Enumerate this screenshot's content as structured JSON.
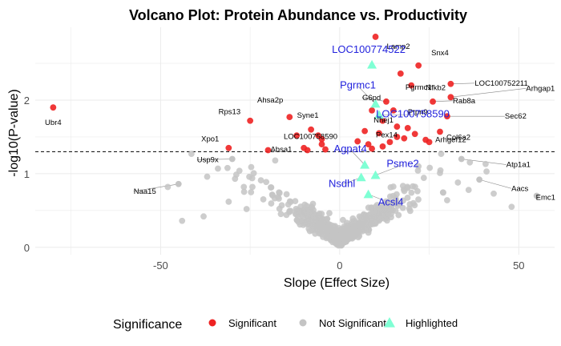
{
  "chart_data": {
    "type": "scatter",
    "title": "Volcano Plot: Protein Abundance vs. Productivity",
    "xlabel": "Slope (Effect Size)",
    "ylabel": "-log10(P-value)",
    "xlim": [
      -85,
      60
    ],
    "ylim": [
      -0.1,
      2.99
    ],
    "xticks": [
      -50,
      0,
      50
    ],
    "yticks": [
      0,
      1,
      2
    ],
    "threshold_y": 1.3,
    "grid": true,
    "legend": {
      "title": "Significance",
      "position": "bottom",
      "entries": [
        {
          "label": "Significant",
          "color": "#ee2222",
          "shape": "circle"
        },
        {
          "label": "Not Significant",
          "color": "#c4c4c4",
          "shape": "circle"
        },
        {
          "label": "Highlighted",
          "color": "#7fffd4",
          "shape": "triangle"
        }
      ]
    },
    "colors": {
      "significant": "#ee2222",
      "not_significant": "#c4c4c4",
      "highlighted": "#7fffd4",
      "highlight_label": "#2222dd"
    },
    "significant": [
      {
        "name": "Ubr4",
        "x": -80,
        "y": 1.9
      },
      {
        "name": "Rps13",
        "x": -25,
        "y": 1.72
      },
      {
        "name": "Ahsa2p",
        "x": -14,
        "y": 1.77
      },
      {
        "name": "Syne1",
        "x": -8,
        "y": 1.6
      },
      {
        "name": "Xpo1",
        "x": -31,
        "y": 1.35
      },
      {
        "name": "Absa1",
        "x": -20,
        "y": 1.32
      },
      {
        "name": "LOC100758590",
        "x": -5,
        "y": 1.47
      },
      {
        "name": "Lamp2",
        "x": 10,
        "y": 2.86
      },
      {
        "name": "Pgrmc1",
        "x": 17,
        "y": 2.36
      },
      {
        "name": "Snx4",
        "x": 22,
        "y": 2.47
      },
      {
        "name": "LOC100752211",
        "x": 31,
        "y": 2.22
      },
      {
        "name": "Nfkb2",
        "x": 20,
        "y": 2.2
      },
      {
        "name": "Arhgap1",
        "x": 31,
        "y": 2.04
      },
      {
        "name": "Rab8a",
        "x": 26,
        "y": 1.98
      },
      {
        "name": "Ptpn9",
        "x": 15,
        "y": 1.86
      },
      {
        "name": "Sec62",
        "x": 30,
        "y": 1.78
      },
      {
        "name": "Col6a2",
        "x": 28,
        "y": 1.57
      },
      {
        "name": "Arhgef12",
        "x": 24,
        "y": 1.46
      },
      {
        "name": "Pex14",
        "x": 11,
        "y": 1.55
      },
      {
        "name": "G6pd",
        "x": 13,
        "y": 1.98
      },
      {
        "name": "Nhej1",
        "x": 9,
        "y": 1.86
      },
      {
        "name": "",
        "x": -12,
        "y": 1.52
      },
      {
        "name": "",
        "x": -10,
        "y": 1.35
      },
      {
        "name": "",
        "x": -6,
        "y": 1.52
      },
      {
        "name": "",
        "x": -5,
        "y": 1.4
      },
      {
        "name": "",
        "x": -4,
        "y": 1.33
      },
      {
        "name": "",
        "x": -9,
        "y": 1.32
      },
      {
        "name": "",
        "x": 8,
        "y": 1.4
      },
      {
        "name": "",
        "x": 9,
        "y": 1.34
      },
      {
        "name": "",
        "x": 12,
        "y": 1.37
      },
      {
        "name": "",
        "x": 14,
        "y": 1.43
      },
      {
        "name": "",
        "x": 16,
        "y": 1.5
      },
      {
        "name": "",
        "x": 18,
        "y": 1.48
      },
      {
        "name": "",
        "x": 19,
        "y": 1.62
      },
      {
        "name": "",
        "x": 21,
        "y": 1.54
      },
      {
        "name": "",
        "x": 25,
        "y": 1.43
      },
      {
        "name": "",
        "x": 7,
        "y": 1.58
      },
      {
        "name": "",
        "x": 5,
        "y": 1.44
      },
      {
        "name": "",
        "x": 12,
        "y": 1.72
      },
      {
        "name": "",
        "x": 16,
        "y": 1.64
      }
    ],
    "not_significant_labeled": [
      {
        "name": "Usp9x",
        "x": -30,
        "y": 1.2
      },
      {
        "name": "Naa15",
        "x": -45,
        "y": 0.86
      },
      {
        "name": "Atp1a1",
        "x": 34,
        "y": 1.2
      },
      {
        "name": "Aacs",
        "x": 39,
        "y": 0.92
      },
      {
        "name": "Emc1",
        "x": 55,
        "y": 0.7
      }
    ],
    "highlighted": [
      {
        "name": "LOC100774522",
        "x": 9,
        "y": 2.48
      },
      {
        "name": "Pgrmc1",
        "x": 10,
        "y": 1.95
      },
      {
        "name": "LOC100758590",
        "x": 11,
        "y": 1.8
      },
      {
        "name": "Agpat4",
        "x": 7,
        "y": 1.12
      },
      {
        "name": "Psme2",
        "x": 10,
        "y": 0.98
      },
      {
        "name": "Nsdhl",
        "x": 6,
        "y": 0.95
      },
      {
        "name": "Acsl4",
        "x": 8,
        "y": 0.72
      }
    ]
  }
}
